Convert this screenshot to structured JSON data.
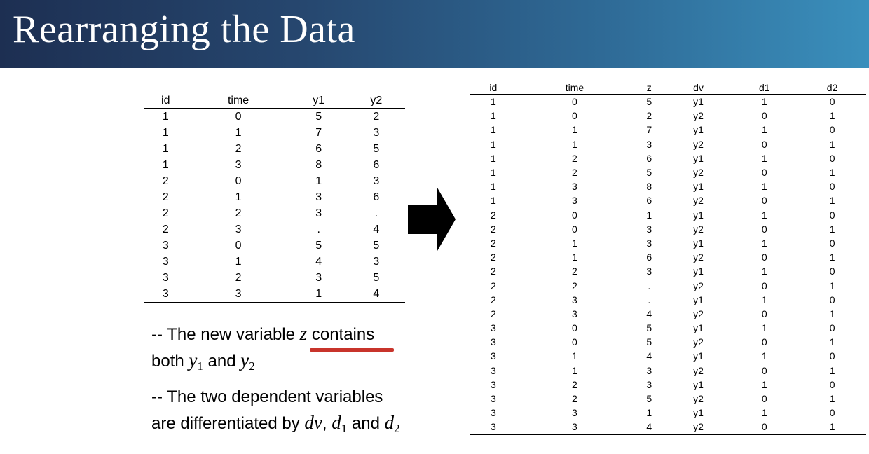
{
  "slide": {
    "title": "Rearranging the Data"
  },
  "wide_table": {
    "headers": [
      "id",
      "time",
      "y1",
      "y2"
    ],
    "rows": [
      [
        "1",
        "0",
        "5",
        "2"
      ],
      [
        "1",
        "1",
        "7",
        "3"
      ],
      [
        "1",
        "2",
        "6",
        "5"
      ],
      [
        "1",
        "3",
        "8",
        "6"
      ],
      [
        "2",
        "0",
        "1",
        "3"
      ],
      [
        "2",
        "1",
        "3",
        "6"
      ],
      [
        "2",
        "2",
        "3",
        "."
      ],
      [
        "2",
        "3",
        ".",
        "4"
      ],
      [
        "3",
        "0",
        "5",
        "5"
      ],
      [
        "3",
        "1",
        "4",
        "3"
      ],
      [
        "3",
        "2",
        "3",
        "5"
      ],
      [
        "3",
        "3",
        "1",
        "4"
      ]
    ]
  },
  "arrow": {
    "icon": "right-arrow-icon"
  },
  "long_table": {
    "headers": [
      "id",
      "time",
      "z",
      "dv",
      "d1",
      "d2"
    ],
    "rows": [
      [
        "1",
        "0",
        "5",
        "y1",
        "1",
        "0"
      ],
      [
        "1",
        "0",
        "2",
        "y2",
        "0",
        "1"
      ],
      [
        "1",
        "1",
        "7",
        "y1",
        "1",
        "0"
      ],
      [
        "1",
        "1",
        "3",
        "y2",
        "0",
        "1"
      ],
      [
        "1",
        "2",
        "6",
        "y1",
        "1",
        "0"
      ],
      [
        "1",
        "2",
        "5",
        "y2",
        "0",
        "1"
      ],
      [
        "1",
        "3",
        "8",
        "y1",
        "1",
        "0"
      ],
      [
        "1",
        "3",
        "6",
        "y2",
        "0",
        "1"
      ],
      [
        "2",
        "0",
        "1",
        "y1",
        "1",
        "0"
      ],
      [
        "2",
        "0",
        "3",
        "y2",
        "0",
        "1"
      ],
      [
        "2",
        "1",
        "3",
        "y1",
        "1",
        "0"
      ],
      [
        "2",
        "1",
        "6",
        "y2",
        "0",
        "1"
      ],
      [
        "2",
        "2",
        "3",
        "y1",
        "1",
        "0"
      ],
      [
        "2",
        "2",
        ".",
        "y2",
        "0",
        "1"
      ],
      [
        "2",
        "3",
        ".",
        "y1",
        "1",
        "0"
      ],
      [
        "2",
        "3",
        "4",
        "y2",
        "0",
        "1"
      ],
      [
        "3",
        "0",
        "5",
        "y1",
        "1",
        "0"
      ],
      [
        "3",
        "0",
        "5",
        "y2",
        "0",
        "1"
      ],
      [
        "3",
        "1",
        "4",
        "y1",
        "1",
        "0"
      ],
      [
        "3",
        "1",
        "3",
        "y2",
        "0",
        "1"
      ],
      [
        "3",
        "2",
        "3",
        "y1",
        "1",
        "0"
      ],
      [
        "3",
        "2",
        "5",
        "y2",
        "0",
        "1"
      ],
      [
        "3",
        "3",
        "1",
        "y1",
        "1",
        "0"
      ],
      [
        "3",
        "3",
        "4",
        "y2",
        "0",
        "1"
      ]
    ]
  },
  "notes": {
    "note1": {
      "prefix": "-- The new variable ",
      "var": "z",
      "suffix": " contains",
      "line2_start": "both ",
      "y": "y",
      "sub1": "1",
      "and": " and ",
      "sub2": "2"
    },
    "note2": {
      "line1": "-- The two dependent variables",
      "line2_start": "are differentiated by ",
      "dv": "dv",
      "comma": ", ",
      "d": "d",
      "sub1": "1",
      "and": " and ",
      "sub2": "2"
    },
    "underline_color": "#c8342b"
  }
}
